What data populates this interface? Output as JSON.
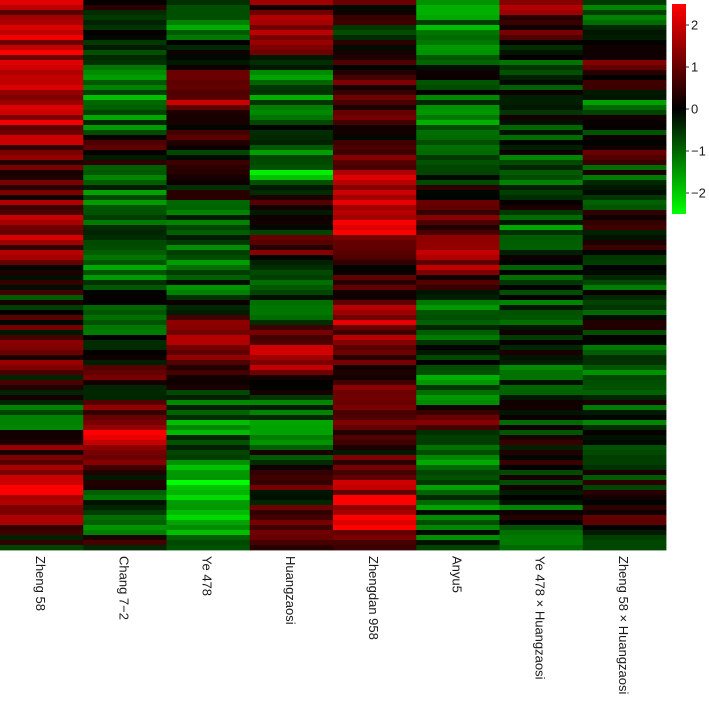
{
  "chart_data": {
    "type": "heatmap",
    "title": "",
    "xlabel": "",
    "ylabel": "",
    "columns": [
      "Zheng 58",
      "Chang 7−2",
      "Ye 478",
      "Huangzaosi",
      "Zhengdan 958",
      "Anyu5",
      "Ye 478 × Huangzaosi",
      "Zheng 58 × Huangzaosi"
    ],
    "row_count": 110,
    "value_range": [
      -2.5,
      2.5
    ],
    "color_scale": {
      "low": "#00ff00",
      "mid": "#000000",
      "high": "#ff0000"
    },
    "legend": {
      "position": "top-right",
      "ticks": [
        "2",
        "1",
        "0",
        "−1",
        "−2"
      ],
      "tick_values": [
        2,
        1,
        0,
        -1,
        -2
      ]
    },
    "column_profiles": [
      [
        1.5,
        1.6,
        1.8,
        2.0,
        1.9,
        1.6,
        1.2,
        0.8,
        1.0,
        1.7,
        1.2,
        0.4,
        -0.2,
        0.3,
        1.0,
        0.6,
        -0.6,
        -1.0,
        0.8,
        1.9,
        2.1,
        1.4,
        -0.4
      ],
      [
        0.2,
        -0.2,
        -0.6,
        -0.8,
        -1.6,
        -1.0,
        0.6,
        -1.2,
        -0.9,
        -0.4,
        -1.5,
        -0.8,
        -0.4,
        -0.6,
        -0.2,
        0.4,
        0.3,
        1.8,
        1.7,
        0.5,
        -0.5,
        -1.2,
        0.3
      ],
      [
        -1.0,
        -1.2,
        -0.5,
        0.8,
        1.3,
        0.4,
        -0.2,
        0.3,
        -0.5,
        -1.0,
        -0.8,
        -0.9,
        -0.6,
        0.9,
        1.4,
        0.6,
        -0.8,
        -1.2,
        -0.9,
        -1.8,
        -2.0,
        -1.6,
        -0.4
      ],
      [
        0.8,
        1.2,
        0.6,
        -1.2,
        -1.0,
        -0.6,
        -1.4,
        -1.6,
        0.5,
        -0.4,
        0.9,
        -0.6,
        -0.9,
        -0.2,
        1.8,
        1.2,
        -0.8,
        -1.3,
        -0.5,
        0.6,
        0.3,
        0.8,
        0.9
      ],
      [
        0.5,
        0.2,
        -0.6,
        0.8,
        0.5,
        0.3,
        0.6,
        1.6,
        1.8,
        2.0,
        1.5,
        0.4,
        0.9,
        1.6,
        0.8,
        0.5,
        1.1,
        1.3,
        0.4,
        1.2,
        1.9,
        2.2,
        1.0
      ],
      [
        -1.0,
        -1.4,
        -0.8,
        -0.6,
        -0.9,
        -1.2,
        -0.4,
        -0.8,
        0.4,
        0.8,
        1.5,
        1.0,
        -1.0,
        -0.8,
        -0.2,
        -1.2,
        -0.8,
        0.6,
        -0.9,
        -1.5,
        -0.7,
        -1.0,
        -0.6
      ],
      [
        1.6,
        0.9,
        -0.6,
        -0.5,
        0.3,
        -0.3,
        -0.6,
        -0.8,
        -0.3,
        -0.9,
        -0.4,
        -0.7,
        -0.6,
        -0.8,
        0.2,
        -0.9,
        -0.3,
        -0.5,
        0.3,
        -0.3,
        -0.6,
        -0.4,
        -0.8
      ],
      [
        -1.2,
        -0.6,
        0.5,
        0.7,
        -0.8,
        -0.5,
        0.3,
        -0.6,
        -0.8,
        0.3,
        -0.2,
        -0.8,
        -0.6,
        -0.3,
        -0.5,
        -0.8,
        -0.4,
        -0.7,
        -0.5,
        -0.3,
        -0.2,
        0.3,
        -0.1
      ]
    ]
  }
}
